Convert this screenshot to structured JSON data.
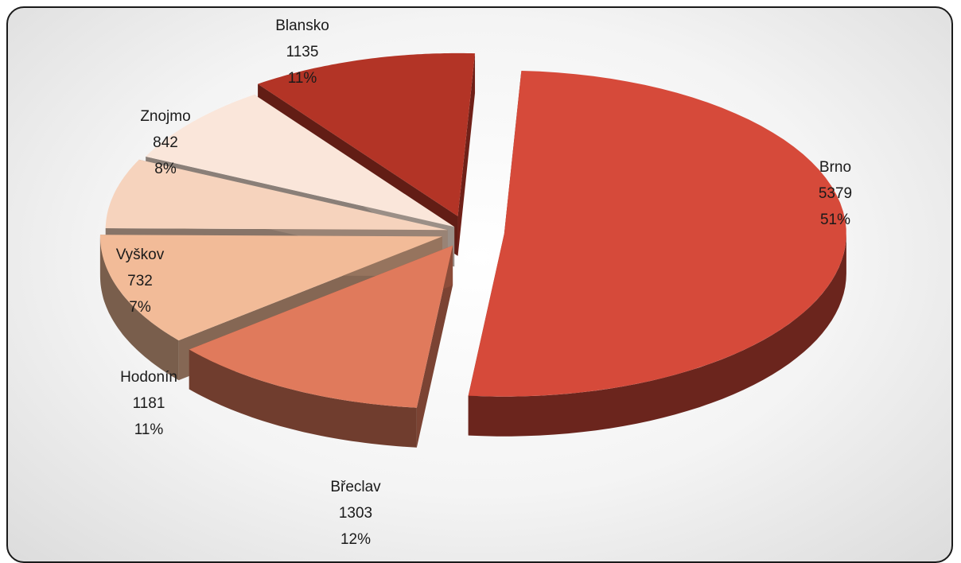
{
  "chart_data": {
    "type": "pie",
    "style": "3d-exploded",
    "slices": [
      {
        "label": "Brno",
        "value": 5379,
        "percent": "51%",
        "color": "#d64a3a"
      },
      {
        "label": "Břeclav",
        "value": 1303,
        "percent": "12%",
        "color": "#e07a5c"
      },
      {
        "label": "Hodonín",
        "value": 1181,
        "percent": "11%",
        "color": "#f2bb98"
      },
      {
        "label": "Vyškov",
        "value": 732,
        "percent": "7%",
        "color": "#f6d3bd"
      },
      {
        "label": "Znojmo",
        "value": 842,
        "percent": "8%",
        "color": "#fae6da"
      },
      {
        "label": "Blansko",
        "value": 1135,
        "percent": "11%",
        "color": "#b33426"
      }
    ],
    "title": "",
    "legend": "none",
    "data_labels": "outside"
  }
}
